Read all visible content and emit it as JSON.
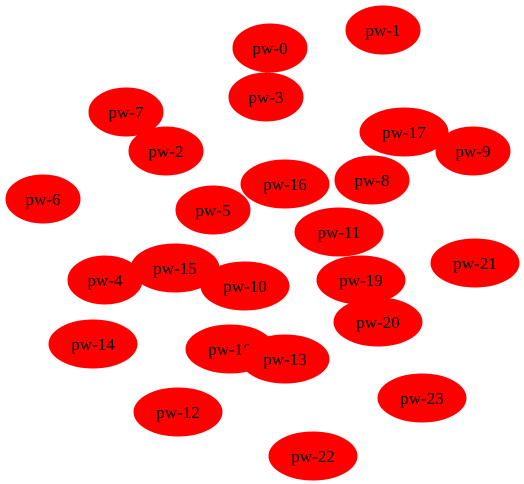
{
  "colors": {
    "node_fill": "#ff0000",
    "node_stroke": "#ff0000",
    "label": "#000000",
    "background": "#ffffff"
  },
  "nodes": [
    {
      "id": "pw-0",
      "label": "pw-0"
    },
    {
      "id": "pw-1",
      "label": "pw-1"
    },
    {
      "id": "pw-3",
      "label": "pw-3"
    },
    {
      "id": "pw-7",
      "label": "pw-7"
    },
    {
      "id": "pw-2",
      "label": "pw-2"
    },
    {
      "id": "pw-17",
      "label": "pw-17"
    },
    {
      "id": "pw-9",
      "label": "pw-9"
    },
    {
      "id": "pw-6",
      "label": "pw-6"
    },
    {
      "id": "pw-16",
      "label": "pw-16"
    },
    {
      "id": "pw-8",
      "label": "pw-8"
    },
    {
      "id": "pw-5",
      "label": "pw-5"
    },
    {
      "id": "pw-11",
      "label": "pw-11"
    },
    {
      "id": "pw-21",
      "label": "pw-21"
    },
    {
      "id": "pw-4",
      "label": "pw-4"
    },
    {
      "id": "pw-15",
      "label": "pw-15"
    },
    {
      "id": "pw-10",
      "label": "pw-10"
    },
    {
      "id": "pw-19",
      "label": "pw-19"
    },
    {
      "id": "pw-20",
      "label": "pw-20"
    },
    {
      "id": "pw-14",
      "label": "pw-14"
    },
    {
      "id": "pw-18",
      "label": "pw-18"
    },
    {
      "id": "pw-13",
      "label": "pw-13"
    },
    {
      "id": "pw-23",
      "label": "pw-23"
    },
    {
      "id": "pw-12",
      "label": "pw-12"
    },
    {
      "id": "pw-22",
      "label": "pw-22"
    }
  ]
}
